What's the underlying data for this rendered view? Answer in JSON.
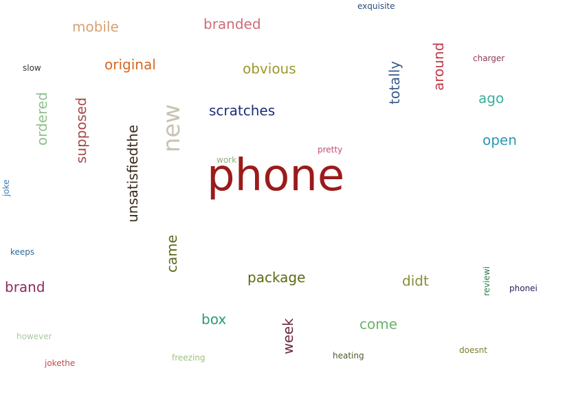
{
  "words": [
    {
      "text": "phone",
      "color": "#9b1b1b"
    },
    {
      "text": "exquisite",
      "color": "#2a4d7a"
    },
    {
      "text": "mobile",
      "color": "#d8a272"
    },
    {
      "text": "branded",
      "color": "#cc6b7a"
    },
    {
      "text": "charger",
      "color": "#8a3a52"
    },
    {
      "text": "slow",
      "color": "#333333"
    },
    {
      "text": "original",
      "color": "#d9661c"
    },
    {
      "text": "obvious",
      "color": "#9a9a2a"
    },
    {
      "text": "around",
      "color": "#c23a4a"
    },
    {
      "text": "totally",
      "color": "#3a5a8a"
    },
    {
      "text": "ago",
      "color": "#3ab09a"
    },
    {
      "text": "ordered",
      "color": "#8fc28a"
    },
    {
      "text": "supposed",
      "color": "#a34a4a"
    },
    {
      "text": "new",
      "color": "#c8c2b2"
    },
    {
      "text": "scratches",
      "color": "#1c2e78"
    },
    {
      "text": "open",
      "color": "#2a9ab2"
    },
    {
      "text": "unsatisfiedthe",
      "color": "#3a2a1a"
    },
    {
      "text": "work",
      "color": "#8ab27a"
    },
    {
      "text": "pretty",
      "color": "#c24a7a"
    },
    {
      "text": "joke",
      "color": "#3a7ab2"
    },
    {
      "text": "keeps",
      "color": "#2a6a9a"
    },
    {
      "text": "came",
      "color": "#5a6a1a"
    },
    {
      "text": "package",
      "color": "#5a6a10"
    },
    {
      "text": "didt",
      "color": "#8a8a3a"
    },
    {
      "text": "reviewi",
      "color": "#2a7a4a"
    },
    {
      "text": "phonei",
      "color": "#2a1a5a"
    },
    {
      "text": "brand",
      "color": "#8a2a5a"
    },
    {
      "text": "box",
      "color": "#2a9a7a"
    },
    {
      "text": "week",
      "color": "#6a2a3a"
    },
    {
      "text": "come",
      "color": "#6ab26a"
    },
    {
      "text": "however",
      "color": "#a8c8a0"
    },
    {
      "text": "heating",
      "color": "#4a5a2a"
    },
    {
      "text": "doesnt",
      "color": "#7a7a2a"
    },
    {
      "text": "freezing",
      "color": "#9ac27a"
    },
    {
      "text": "jokethe",
      "color": "#c24a4a"
    }
  ]
}
